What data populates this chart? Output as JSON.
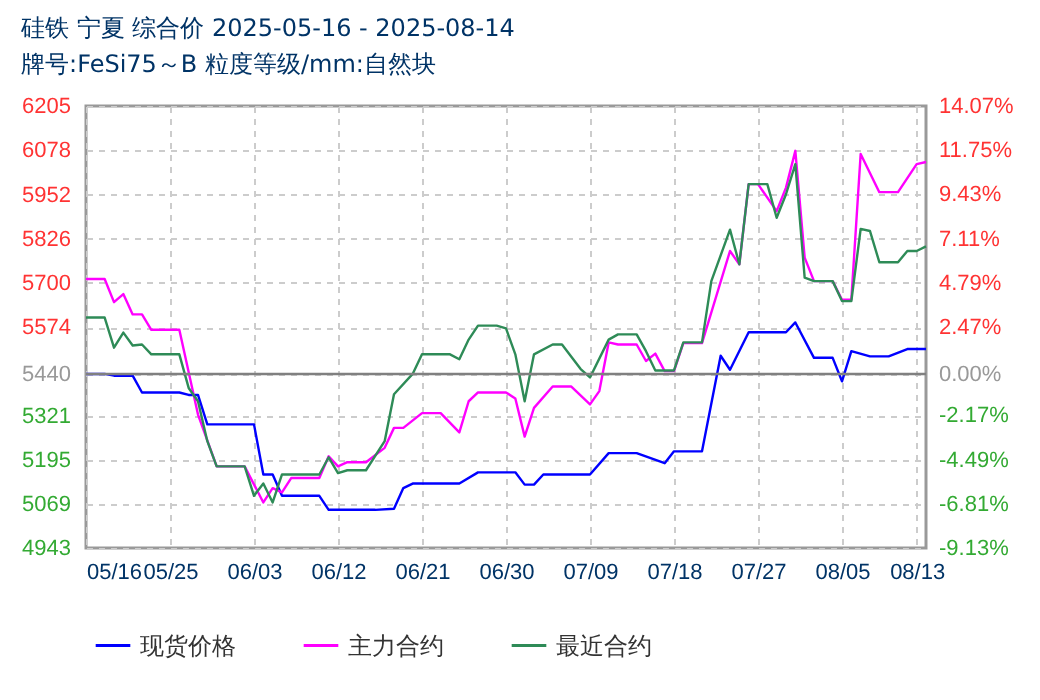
{
  "chart_data": {
    "type": "line",
    "title": "硅铁 宁夏 综合价 2025-05-16 - 2025-08-14",
    "subtitle": "牌号:FeSi75～B 粒度等级/mm:自然块",
    "xlim": [
      "2025-05-16",
      "2025-08-14"
    ],
    "xticks": [
      {
        "value": "2025-05-16",
        "label": "05/16"
      },
      {
        "value": "2025-05-25",
        "label": "05/25"
      },
      {
        "value": "2025-06-03",
        "label": "06/03"
      },
      {
        "value": "2025-06-12",
        "label": "06/12"
      },
      {
        "value": "2025-06-21",
        "label": "06/21"
      },
      {
        "value": "2025-06-30",
        "label": "06/30"
      },
      {
        "value": "2025-07-09",
        "label": "07/09"
      },
      {
        "value": "2025-07-18",
        "label": "07/18"
      },
      {
        "value": "2025-07-27",
        "label": "07/27"
      },
      {
        "value": "2025-08-05",
        "label": "08/05"
      },
      {
        "value": "2025-08-13",
        "label": "08/13"
      }
    ],
    "ylim": [
      4943,
      6205
    ],
    "yticks": [
      4943,
      5069,
      5195,
      5321,
      5440,
      5574,
      5700,
      5826,
      5952,
      6078,
      6205
    ],
    "y2lim": [
      -9.13,
      14.07
    ],
    "y2ticks": [
      {
        "value": -9.13,
        "label": "-9.13%"
      },
      {
        "value": -6.81,
        "label": "-6.81%"
      },
      {
        "value": -4.49,
        "label": "-4.49%"
      },
      {
        "value": -2.17,
        "label": "-2.17%"
      },
      {
        "value": 0,
        "label": "0.00%"
      },
      {
        "value": 2.47,
        "label": "2.47%"
      },
      {
        "value": 4.79,
        "label": "4.79%"
      },
      {
        "value": 7.11,
        "label": "7.11%"
      },
      {
        "value": 9.43,
        "label": "9.43%"
      },
      {
        "value": 11.75,
        "label": "11.75%"
      },
      {
        "value": 14.07,
        "label": "14.07%"
      }
    ],
    "ref_lines": [
      {
        "axis": "y2",
        "value": 0,
        "color": "#808080"
      }
    ],
    "grid": true,
    "legend": "bottom",
    "line_style": "solid",
    "series": [
      {
        "name": "现货价格",
        "color": "#0000ff",
        "x": [
          "2025-05-16",
          "2025-05-18",
          "2025-05-19",
          "2025-05-21",
          "2025-05-22",
          "2025-05-26",
          "2025-05-27",
          "2025-05-28",
          "2025-05-29",
          "2025-06-03",
          "2025-06-04",
          "2025-06-05",
          "2025-06-06",
          "2025-06-10",
          "2025-06-11",
          "2025-06-16",
          "2025-06-18",
          "2025-06-19",
          "2025-06-20",
          "2025-06-25",
          "2025-06-27",
          "2025-07-01",
          "2025-07-02",
          "2025-07-03",
          "2025-07-04",
          "2025-07-09",
          "2025-07-11",
          "2025-07-14",
          "2025-07-17",
          "2025-07-18",
          "2025-07-21",
          "2025-07-23",
          "2025-07-24",
          "2025-07-26",
          "2025-07-30",
          "2025-07-31",
          "2025-08-02",
          "2025-08-04",
          "2025-08-05",
          "2025-08-06",
          "2025-08-08",
          "2025-08-10",
          "2025-08-12",
          "2025-08-14"
        ],
        "values": [
          5440,
          5440,
          5435,
          5435,
          5387,
          5387,
          5380,
          5380,
          5296,
          5296,
          5153,
          5153,
          5092,
          5092,
          5052,
          5052,
          5055,
          5114,
          5127,
          5127,
          5159,
          5159,
          5124,
          5124,
          5153,
          5153,
          5214,
          5214,
          5185,
          5219,
          5219,
          5492,
          5452,
          5559,
          5559,
          5587,
          5486,
          5486,
          5419,
          5505,
          5490,
          5490,
          5511,
          5511
        ]
      },
      {
        "name": "主力合约",
        "color": "#ff00ff",
        "x": [
          "2025-05-16",
          "2025-05-18",
          "2025-05-19",
          "2025-05-20",
          "2025-05-21",
          "2025-05-22",
          "2025-05-23",
          "2025-05-26",
          "2025-05-28",
          "2025-05-30",
          "2025-06-02",
          "2025-06-04",
          "2025-06-05",
          "2025-06-06",
          "2025-06-07",
          "2025-06-10",
          "2025-06-11",
          "2025-06-12",
          "2025-06-13",
          "2025-06-15",
          "2025-06-17",
          "2025-06-18",
          "2025-06-19",
          "2025-06-21",
          "2025-06-23",
          "2025-06-25",
          "2025-06-26",
          "2025-06-27",
          "2025-06-30",
          "2025-07-01",
          "2025-07-02",
          "2025-07-03",
          "2025-07-05",
          "2025-07-07",
          "2025-07-09",
          "2025-07-10",
          "2025-07-11",
          "2025-07-12",
          "2025-07-14",
          "2025-07-15",
          "2025-07-16",
          "2025-07-17",
          "2025-07-18",
          "2025-07-19",
          "2025-07-21",
          "2025-07-24",
          "2025-07-25",
          "2025-07-26",
          "2025-07-27",
          "2025-07-29",
          "2025-07-30",
          "2025-07-31",
          "2025-08-01",
          "2025-08-02",
          "2025-08-04",
          "2025-08-05",
          "2025-08-06",
          "2025-08-07",
          "2025-08-09",
          "2025-08-11",
          "2025-08-13",
          "2025-08-14"
        ],
        "values": [
          5711,
          5711,
          5645,
          5668,
          5610,
          5610,
          5566,
          5566,
          5324,
          5176,
          5176,
          5073,
          5114,
          5102,
          5143,
          5143,
          5205,
          5176,
          5188,
          5188,
          5229,
          5286,
          5286,
          5328,
          5328,
          5273,
          5362,
          5387,
          5387,
          5370,
          5261,
          5343,
          5404,
          5404,
          5353,
          5391,
          5530,
          5524,
          5524,
          5477,
          5498,
          5448,
          5448,
          5528,
          5528,
          5791,
          5753,
          5982,
          5982,
          5905,
          5972,
          6077,
          5772,
          5705,
          5705,
          5652,
          5652,
          6068,
          5959,
          5959,
          6039,
          6045
        ]
      },
      {
        "name": "最近合约",
        "color": "#2e8b57",
        "x": [
          "2025-05-16",
          "2025-05-18",
          "2025-05-19",
          "2025-05-20",
          "2025-05-21",
          "2025-05-22",
          "2025-05-23",
          "2025-05-26",
          "2025-05-27",
          "2025-05-28",
          "2025-05-29",
          "2025-05-30",
          "2025-06-02",
          "2025-06-03",
          "2025-06-04",
          "2025-06-05",
          "2025-06-06",
          "2025-06-10",
          "2025-06-11",
          "2025-06-12",
          "2025-06-13",
          "2025-06-15",
          "2025-06-17",
          "2025-06-18",
          "2025-06-20",
          "2025-06-21",
          "2025-06-24",
          "2025-06-25",
          "2025-06-26",
          "2025-06-27",
          "2025-06-29",
          "2025-06-30",
          "2025-07-01",
          "2025-07-02",
          "2025-07-03",
          "2025-07-05",
          "2025-07-06",
          "2025-07-08",
          "2025-07-09",
          "2025-07-11",
          "2025-07-12",
          "2025-07-14",
          "2025-07-15",
          "2025-07-16",
          "2025-07-18",
          "2025-07-19",
          "2025-07-21",
          "2025-07-22",
          "2025-07-24",
          "2025-07-25",
          "2025-07-26",
          "2025-07-28",
          "2025-07-29",
          "2025-07-30",
          "2025-07-31",
          "2025-08-01",
          "2025-08-02",
          "2025-08-04",
          "2025-08-05",
          "2025-08-06",
          "2025-08-07",
          "2025-08-08",
          "2025-08-09",
          "2025-08-11",
          "2025-08-12",
          "2025-08-13",
          "2025-08-14"
        ],
        "values": [
          5601,
          5601,
          5515,
          5558,
          5521,
          5524,
          5496,
          5496,
          5400,
          5362,
          5248,
          5176,
          5176,
          5092,
          5127,
          5073,
          5153,
          5153,
          5202,
          5157,
          5165,
          5165,
          5248,
          5382,
          5440,
          5496,
          5496,
          5482,
          5538,
          5578,
          5578,
          5570,
          5496,
          5362,
          5496,
          5524,
          5524,
          5454,
          5430,
          5538,
          5553,
          5553,
          5505,
          5450,
          5450,
          5530,
          5530,
          5705,
          5852,
          5753,
          5982,
          5982,
          5886,
          5953,
          6039,
          5715,
          5705,
          5705,
          5648,
          5648,
          5854,
          5848,
          5759,
          5759,
          5791,
          5791,
          5804
        ]
      }
    ]
  }
}
